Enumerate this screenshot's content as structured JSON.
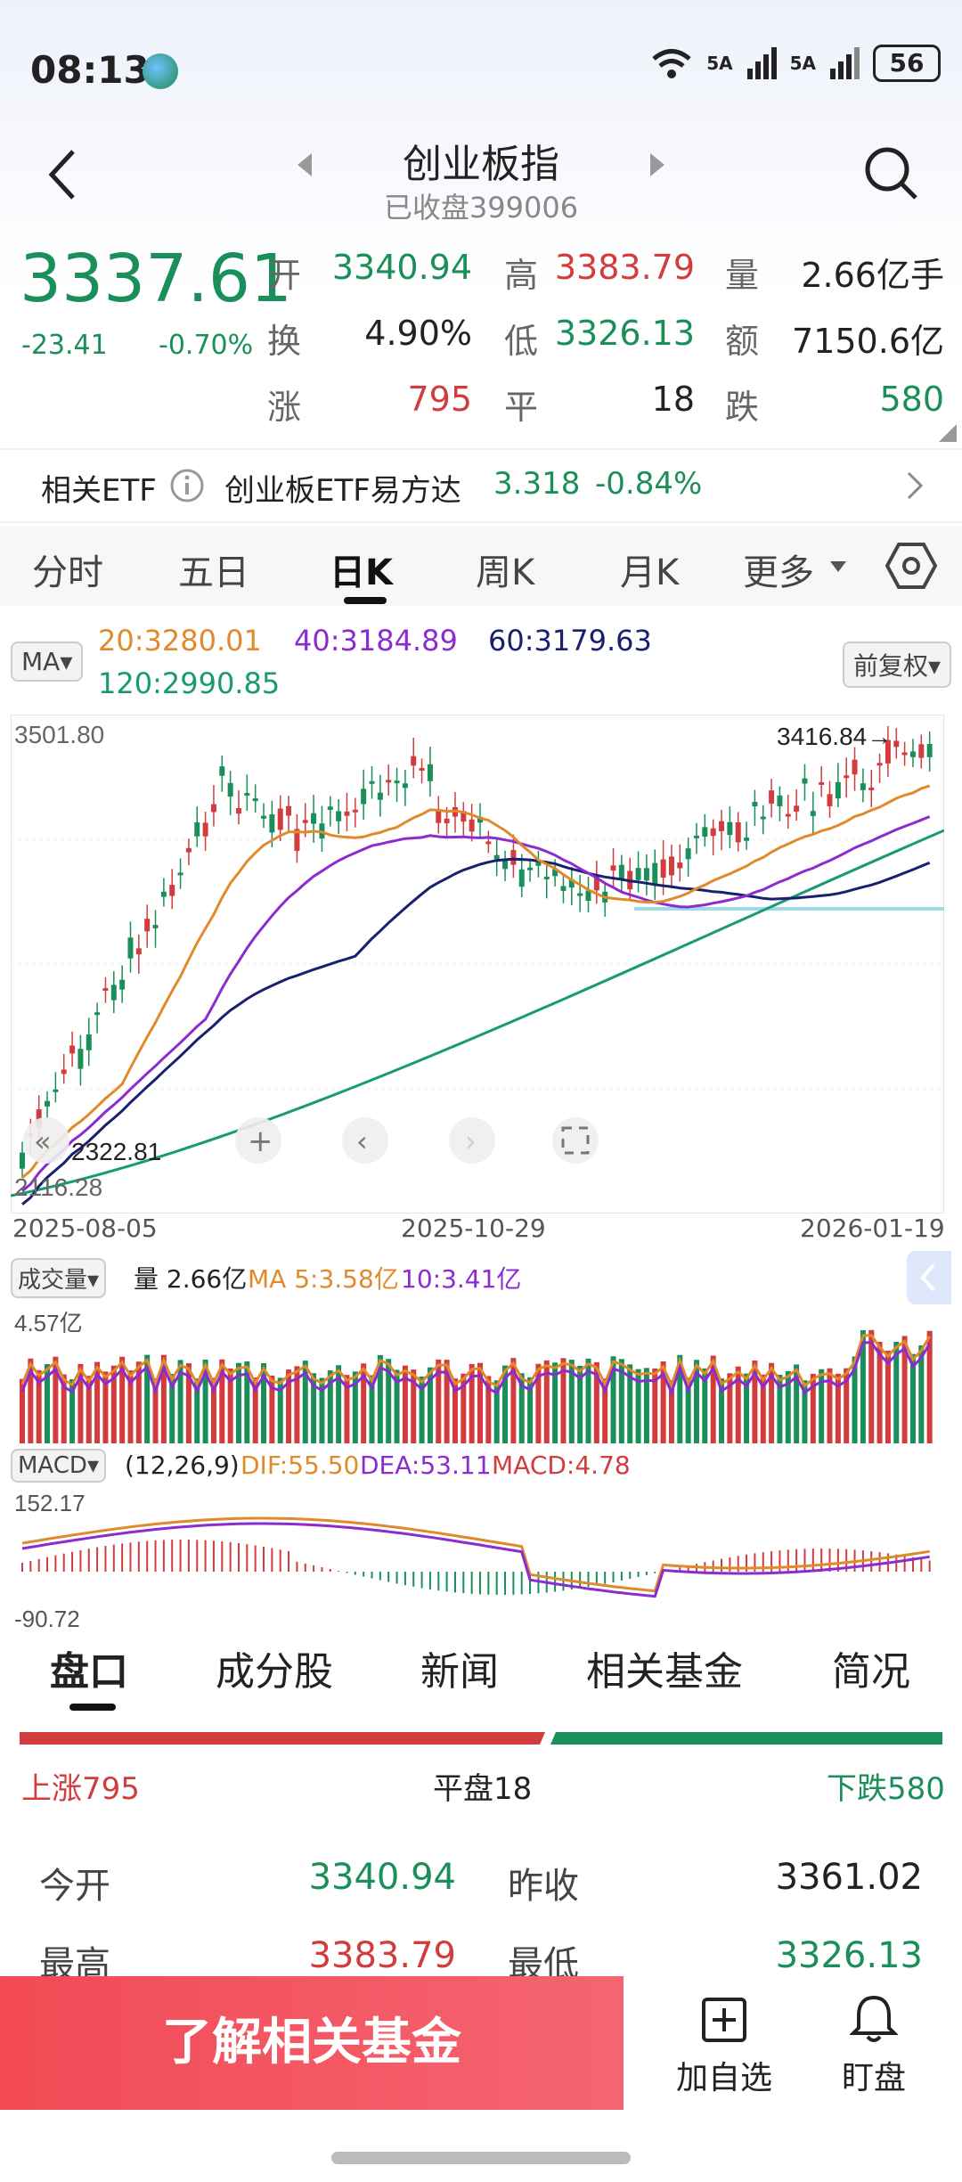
{
  "status": {
    "time": "08:13",
    "net1": "5A",
    "net2": "5A",
    "battery": "56"
  },
  "nav": {
    "title": "创业板指",
    "subtitle": "已收盘399006"
  },
  "quote": {
    "price": "3337.61",
    "change": "-23.41",
    "pct": "-0.70%",
    "labels": {
      "open": "开",
      "high": "高",
      "vol": "量",
      "turnover": "换",
      "low": "低",
      "amount": "额",
      "up": "涨",
      "flat": "平",
      "down": "跌"
    },
    "open": "3340.94",
    "high": "3383.79",
    "vol": "2.66亿手",
    "turnover": "4.90%",
    "low": "3326.13",
    "amount": "7150.6亿",
    "up": "795",
    "flat": "18",
    "down": "580"
  },
  "etf": {
    "label": "相关ETF",
    "name": "创业板ETF易方达",
    "price": "3.318",
    "pct": "-0.84%"
  },
  "tabs_chart": [
    "分时",
    "五日",
    "日K",
    "周K",
    "月K",
    "更多"
  ],
  "ma": {
    "label": "MA",
    "ma20": "20:3280.01",
    "ma40": "40:3184.89",
    "ma60": "60:3179.63",
    "ma120": "120:2990.85",
    "adjust": "前复权"
  },
  "kline": {
    "top": "3501.80",
    "bottom": "2116.28",
    "low_label": "2322.81",
    "high_label": "3416.84→",
    "dates": [
      "2025-08-05",
      "2025-10-29",
      "2026-01-19"
    ]
  },
  "volume": {
    "label": "成交量",
    "vol": "量 2.66亿",
    "ma5": "MA 5:3.58亿",
    "ma10": "10:3.41亿",
    "top": "4.57亿"
  },
  "macd": {
    "label": "MACD",
    "params": "(12,26,9)",
    "dif": "DIF:55.50",
    "dea": "DEA:53.11",
    "macd": "MACD:4.78",
    "top": "152.17",
    "bottom": "-90.72"
  },
  "tabs_info": [
    "盘口",
    "成分股",
    "新闻",
    "相关基金",
    "简况"
  ],
  "breadth": {
    "up": "上涨795",
    "flat": "平盘18",
    "down": "下跌580"
  },
  "stats": {
    "open_l": "今开",
    "open_v": "3340.94",
    "prev_l": "昨收",
    "prev_v": "3361.02",
    "high_l": "最高",
    "high_v": "3383.79",
    "low_l": "最低",
    "low_v": "3326.13"
  },
  "bottom": {
    "cta": "了解相关基金",
    "add": "加自选",
    "watch": "盯盘"
  },
  "colors": {
    "up": "#d23c3c",
    "down": "#1a8f5a",
    "ma20": "#e08a2c",
    "ma40": "#8b2bd0",
    "ma60": "#1a2070",
    "ma120": "#1a9a70"
  }
}
